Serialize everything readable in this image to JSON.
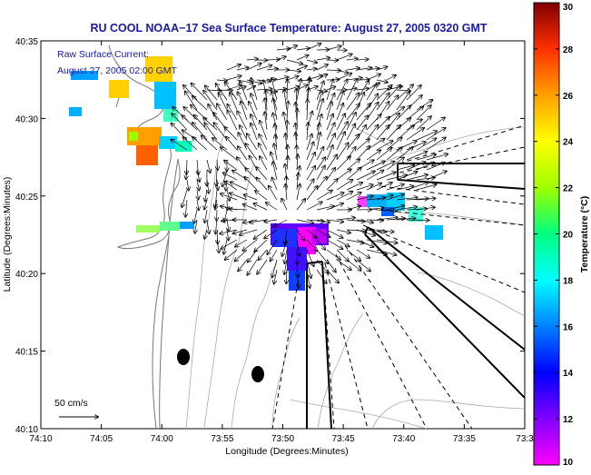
{
  "title": "RU COOL  NOAA−17  Sea Surface Temperature:  August 27, 2005 0320 GMT",
  "overlay": {
    "line1": "Raw Surface Current:",
    "line2": "August 27, 2005 02:00 GMT",
    "scale_label": "50 cm/s",
    "scale_value_cm_s": 50
  },
  "axes": {
    "xlabel": "Longitude (Degrees:Minutes)",
    "ylabel": "Latitude (Degrees:Minutes)",
    "x_ticks": [
      "74:10",
      "74:05",
      "74:00",
      "73:55",
      "73:50",
      "73:45",
      "73:40",
      "73:35",
      "73:3"
    ],
    "y_ticks": [
      "40:10",
      "40:15",
      "40:20",
      "40:25",
      "40:30",
      "40:35"
    ],
    "lon_range": [
      -74.1667,
      -73.5
    ],
    "lat_range": [
      40.1667,
      40.5833
    ]
  },
  "colorbar": {
    "label": "Temperature (°C)",
    "min": 10,
    "max": 30,
    "ticks": [
      "10",
      "12",
      "14",
      "16",
      "18",
      "20",
      "22",
      "24",
      "26",
      "28",
      "30"
    ],
    "colors": [
      "#ff00ff",
      "#8000ff",
      "#0000ff",
      "#0080ff",
      "#00ffff",
      "#00ff80",
      "#a0ff00",
      "#ffff00",
      "#ffa000",
      "#ff3000",
      "#800000"
    ]
  },
  "legend_colors": {
    "coast": "#888888",
    "contour": "#aaaaaa",
    "vectors": "#000000",
    "text_blue": "#1a1aa0"
  }
}
